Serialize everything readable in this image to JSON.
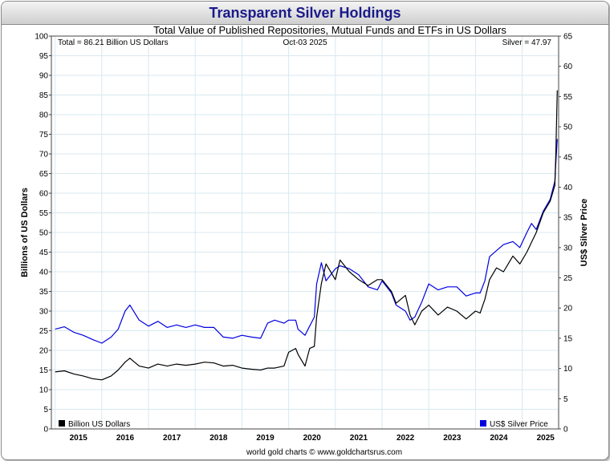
{
  "header": {
    "title": "Transparent Silver Holdings",
    "subtitle": "Total Value of Published Repositories, Mutual Funds and ETFs in US Dollars"
  },
  "annotations": {
    "total": "Total = 86.21 Billion US Dollars",
    "date": "Oct-03  2025",
    "silver": "Silver = 47.97"
  },
  "footer": {
    "credit": "world gold charts © www.goldchartsrus.com"
  },
  "colors": {
    "holdings": "#000000",
    "silver": "#0000e0",
    "grid": "#d8e8f0",
    "title": "#1a1a8a"
  },
  "chart_data": {
    "type": "line",
    "title": "Transparent Silver Holdings",
    "subtitle": "Total Value of Published Repositories, Mutual Funds and ETFs in US Dollars",
    "ylabel": "Billions of US Dollars",
    "y2label": "US$ Silver Price",
    "ylim": [
      0,
      100
    ],
    "y2lim": [
      0,
      65
    ],
    "yticks": [
      0,
      5,
      10,
      15,
      20,
      25,
      30,
      35,
      40,
      45,
      50,
      55,
      60,
      65,
      70,
      75,
      80,
      85,
      90,
      95,
      100
    ],
    "y2ticks": [
      0,
      5,
      10,
      15,
      20,
      25,
      30,
      35,
      40,
      45,
      50,
      55,
      60,
      65
    ],
    "xlim": [
      2014.92,
      2025.78
    ],
    "xticks": [
      "2015",
      "2016",
      "2017",
      "2018",
      "2019",
      "2020",
      "2021",
      "2022",
      "2023",
      "2024",
      "2025"
    ],
    "legend": {
      "left": "Billion US Dollars",
      "right": "US$ Silver Price",
      "placement": "bottom"
    },
    "series": [
      {
        "name": "Billion US Dollars",
        "axis": "left",
        "x": [
          2015.0,
          2015.2,
          2015.4,
          2015.6,
          2015.8,
          2016.0,
          2016.2,
          2016.35,
          2016.5,
          2016.6,
          2016.8,
          2017.0,
          2017.2,
          2017.4,
          2017.6,
          2017.8,
          2018.0,
          2018.2,
          2018.4,
          2018.6,
          2018.8,
          2019.0,
          2019.2,
          2019.4,
          2019.55,
          2019.7,
          2019.9,
          2020.0,
          2020.15,
          2020.2,
          2020.35,
          2020.45,
          2020.55,
          2020.6,
          2020.7,
          2020.8,
          2021.0,
          2021.1,
          2021.3,
          2021.5,
          2021.7,
          2021.9,
          2022.0,
          2022.2,
          2022.3,
          2022.5,
          2022.6,
          2022.7,
          2022.85,
          2023.0,
          2023.2,
          2023.4,
          2023.6,
          2023.8,
          2024.0,
          2024.1,
          2024.2,
          2024.3,
          2024.45,
          2024.6,
          2024.8,
          2024.95,
          2025.1,
          2025.2,
          2025.3,
          2025.45,
          2025.6,
          2025.7,
          2025.72,
          2025.75
        ],
        "y": [
          14.5,
          14.8,
          14.0,
          13.5,
          12.8,
          12.5,
          13.5,
          15.0,
          17.0,
          18.0,
          16.0,
          15.5,
          16.5,
          16.0,
          16.5,
          16.2,
          16.5,
          17.0,
          16.8,
          16.0,
          16.2,
          15.5,
          15.2,
          15.0,
          15.5,
          15.5,
          16.0,
          19.5,
          20.5,
          19.0,
          16.0,
          20.5,
          21.0,
          28.5,
          37.0,
          42.0,
          38.0,
          43.0,
          40.0,
          38.0,
          36.5,
          38.0,
          38.0,
          35.0,
          32.0,
          34.0,
          29.0,
          26.5,
          30.0,
          31.5,
          29.0,
          31.0,
          30.0,
          28.0,
          30.0,
          29.5,
          33.0,
          38.0,
          41.0,
          40.0,
          44.0,
          42.0,
          45.0,
          47.5,
          50.0,
          55.0,
          58.0,
          62.0,
          70.0,
          86.21
        ]
      },
      {
        "name": "US$ Silver Price",
        "axis": "right",
        "x": [
          2015.0,
          2015.2,
          2015.4,
          2015.6,
          2015.8,
          2016.0,
          2016.2,
          2016.35,
          2016.5,
          2016.6,
          2016.8,
          2017.0,
          2017.2,
          2017.4,
          2017.6,
          2017.8,
          2018.0,
          2018.2,
          2018.4,
          2018.6,
          2018.8,
          2019.0,
          2019.2,
          2019.4,
          2019.55,
          2019.7,
          2019.9,
          2020.0,
          2020.15,
          2020.2,
          2020.35,
          2020.45,
          2020.55,
          2020.6,
          2020.7,
          2020.8,
          2021.0,
          2021.1,
          2021.3,
          2021.5,
          2021.7,
          2021.9,
          2022.0,
          2022.2,
          2022.3,
          2022.5,
          2022.6,
          2022.7,
          2022.85,
          2023.0,
          2023.2,
          2023.4,
          2023.6,
          2023.8,
          2024.0,
          2024.1,
          2024.2,
          2024.3,
          2024.45,
          2024.6,
          2024.8,
          2024.95,
          2025.1,
          2025.2,
          2025.3,
          2025.45,
          2025.6,
          2025.7,
          2025.72,
          2025.75
        ],
        "y": [
          16.5,
          16.9,
          16.0,
          15.5,
          14.8,
          14.2,
          15.2,
          16.5,
          19.5,
          20.5,
          18.0,
          17.0,
          17.8,
          16.8,
          17.2,
          16.8,
          17.2,
          16.8,
          16.8,
          15.2,
          15.0,
          15.5,
          15.2,
          15.0,
          17.5,
          18.0,
          17.5,
          18.0,
          18.0,
          16.5,
          15.5,
          17.0,
          18.5,
          24.0,
          27.5,
          24.5,
          26.5,
          27.0,
          26.5,
          25.5,
          23.5,
          23.0,
          24.5,
          22.5,
          20.5,
          19.5,
          18.0,
          18.5,
          21.0,
          24.0,
          23.0,
          23.5,
          23.5,
          22.0,
          22.5,
          22.5,
          24.5,
          28.5,
          29.5,
          30.5,
          31.0,
          30.0,
          32.5,
          34.0,
          33.0,
          36.0,
          38.0,
          41.0,
          44.0,
          47.97
        ]
      }
    ]
  }
}
